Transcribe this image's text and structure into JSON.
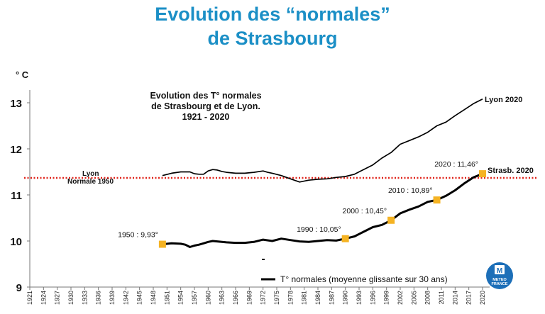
{
  "header": {
    "title_line1": "Evolution des “normales”",
    "title_line2": "de Strasbourg"
  },
  "colors": {
    "title": "#1b8fc6",
    "reference_line": "#e0241b",
    "marker": "#f5b323",
    "line": "#000000",
    "logo": "#1d6fb8"
  },
  "chart_data": {
    "type": "line",
    "inner_title": [
      "Evolution des T° normales",
      "de Strasbourg et de Lyon.",
      "1921 - 2020"
    ],
    "ylabel": "° C",
    "ylim": [
      9,
      13.2
    ],
    "yticks": [
      9,
      10,
      11,
      12,
      13
    ],
    "xlim": [
      1921,
      2020
    ],
    "xticks": [
      1921,
      1924,
      1927,
      1930,
      1933,
      1936,
      1939,
      1942,
      1945,
      1948,
      1951,
      1954,
      1957,
      1960,
      1963,
      1966,
      1969,
      1972,
      1975,
      1978,
      1981,
      1984,
      1987,
      1990,
      1993,
      1996,
      1999,
      2002,
      2005,
      2008,
      2011,
      2014,
      2017,
      2020
    ],
    "reference": {
      "value": 11.37,
      "label_line1": "Lyon",
      "label_line2": "Normale 1950"
    },
    "series": [
      {
        "name": "Lyon 2020",
        "x": [
          1950,
          1952,
          1954,
          1956,
          1957,
          1958,
          1959,
          1960,
          1961,
          1962,
          1963,
          1964,
          1966,
          1968,
          1970,
          1972,
          1973,
          1974,
          1976,
          1978,
          1980,
          1982,
          1984,
          1986,
          1988,
          1990,
          1992,
          1994,
          1996,
          1998,
          2000,
          2002,
          2004,
          2006,
          2008,
          2010,
          2012,
          2014,
          2016,
          2018,
          2020
        ],
        "values": [
          11.42,
          11.47,
          11.5,
          11.5,
          11.46,
          11.45,
          11.45,
          11.52,
          11.55,
          11.54,
          11.51,
          11.49,
          11.47,
          11.47,
          11.49,
          11.52,
          11.49,
          11.47,
          11.42,
          11.35,
          11.28,
          11.32,
          11.34,
          11.35,
          11.38,
          11.4,
          11.45,
          11.55,
          11.65,
          11.8,
          11.92,
          12.1,
          12.18,
          12.26,
          12.36,
          12.5,
          12.58,
          12.72,
          12.85,
          12.98,
          13.08
        ]
      },
      {
        "name": "Strasb. 2020",
        "x": [
          1950,
          1952,
          1954,
          1955,
          1956,
          1957,
          1958,
          1959,
          1960,
          1961,
          1962,
          1964,
          1966,
          1968,
          1970,
          1972,
          1974,
          1976,
          1978,
          1980,
          1982,
          1984,
          1986,
          1988,
          1990,
          1992,
          1994,
          1996,
          1998,
          2000,
          2002,
          2004,
          2006,
          2008,
          2010,
          2012,
          2014,
          2016,
          2018,
          2020
        ],
        "values": [
          9.93,
          9.95,
          9.94,
          9.92,
          9.87,
          9.9,
          9.92,
          9.95,
          9.98,
          10.0,
          9.99,
          9.97,
          9.96,
          9.96,
          9.98,
          10.03,
          10.0,
          10.05,
          10.02,
          9.99,
          9.98,
          10.0,
          10.02,
          10.01,
          10.05,
          10.1,
          10.2,
          10.3,
          10.35,
          10.45,
          10.6,
          10.68,
          10.75,
          10.85,
          10.89,
          10.98,
          11.1,
          11.25,
          11.38,
          11.46
        ]
      }
    ],
    "highlights": [
      {
        "x": 1950,
        "y": 9.93,
        "label": "1950 : 9,93°"
      },
      {
        "x": 1990,
        "y": 10.05,
        "label": "1990 : 10,05°"
      },
      {
        "x": 2000,
        "y": 10.45,
        "label": "2000 : 10,45°"
      },
      {
        "x": 2010,
        "y": 10.89,
        "label": "2010 : 10,89°"
      },
      {
        "x": 2020,
        "y": 11.46,
        "label": "2020 : 11,46°"
      }
    ],
    "legend": {
      "label": "T° normales (moyenne glissante sur 30 ans)",
      "position": "bottom-right"
    },
    "grid": false
  },
  "logo": {
    "line1": "METEO",
    "line2": "FRANCE"
  }
}
